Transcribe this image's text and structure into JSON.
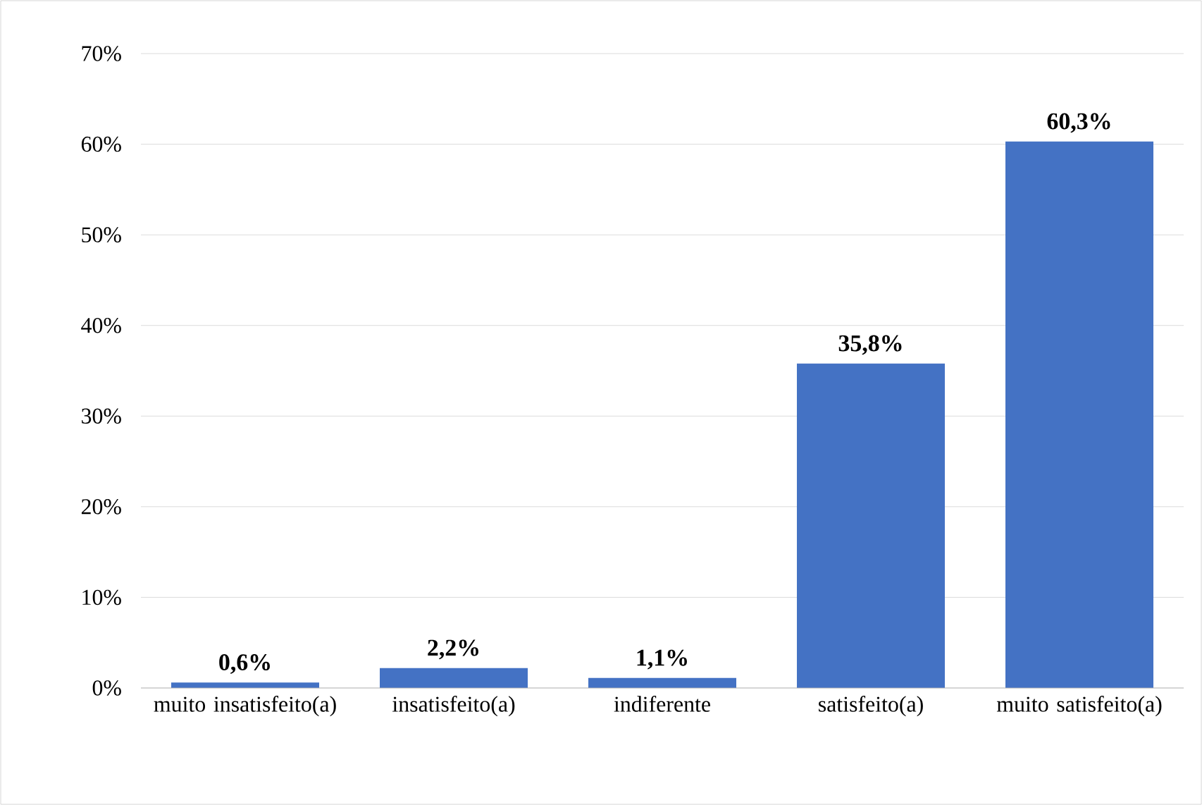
{
  "chart_data": {
    "type": "bar",
    "categories": [
      "muito insatisfeito(a)",
      "insatisfeito(a)",
      "indiferente",
      "satisfeito(a)",
      "muito satisfeito(a)"
    ],
    "values": [
      0.6,
      2.2,
      1.1,
      35.8,
      60.3
    ],
    "value_labels": [
      "0,6%",
      "2,2%",
      "1,1%",
      "35,8%",
      "60,3%"
    ],
    "color": "#4472c4",
    "ylim": [
      0,
      70
    ],
    "yticks": [
      {
        "value": 0,
        "label": "0%"
      },
      {
        "value": 10,
        "label": "10%"
      },
      {
        "value": 20,
        "label": "20%"
      },
      {
        "value": 30,
        "label": "30%"
      },
      {
        "value": 40,
        "label": "40%"
      },
      {
        "value": 50,
        "label": "50%"
      },
      {
        "value": 60,
        "label": "60%"
      },
      {
        "value": 70,
        "label": "70%"
      }
    ],
    "grid": "y"
  }
}
